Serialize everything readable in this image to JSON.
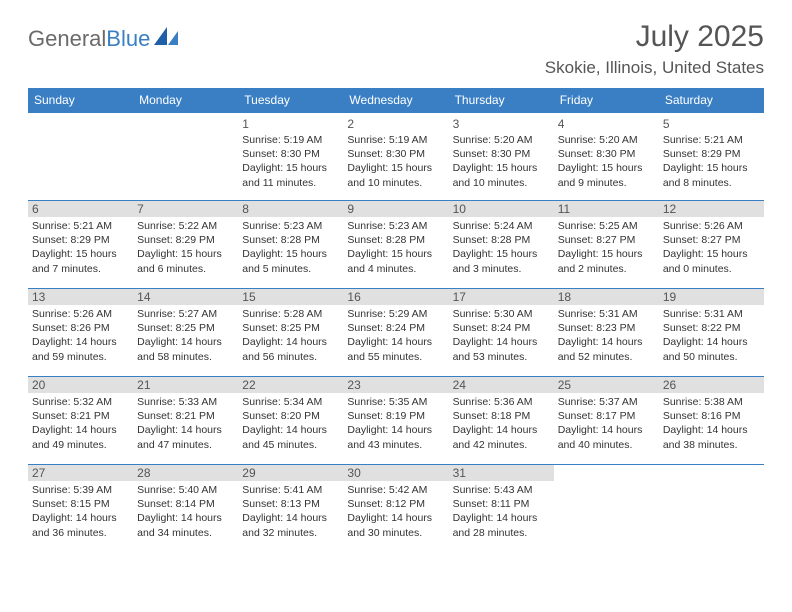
{
  "logo": {
    "part1": "General",
    "part2": "Blue"
  },
  "title": "July 2025",
  "location": "Skokie, Illinois, United States",
  "day_headers": [
    "Sunday",
    "Monday",
    "Tuesday",
    "Wednesday",
    "Thursday",
    "Friday",
    "Saturday"
  ],
  "colors": {
    "header_bg": "#3a7fc4",
    "header_text": "#ffffff",
    "border": "#3a7fc4",
    "logo_grey": "#6a6a6a",
    "logo_blue": "#3a7fc4",
    "shade_bg": "#e0e0e0"
  },
  "weeks": [
    [
      {
        "empty": true
      },
      {
        "empty": true
      },
      {
        "day": "1",
        "shaded": false,
        "sunrise": "Sunrise: 5:19 AM",
        "sunset": "Sunset: 8:30 PM",
        "daylight1": "Daylight: 15 hours",
        "daylight2": "and 11 minutes."
      },
      {
        "day": "2",
        "shaded": false,
        "sunrise": "Sunrise: 5:19 AM",
        "sunset": "Sunset: 8:30 PM",
        "daylight1": "Daylight: 15 hours",
        "daylight2": "and 10 minutes."
      },
      {
        "day": "3",
        "shaded": false,
        "sunrise": "Sunrise: 5:20 AM",
        "sunset": "Sunset: 8:30 PM",
        "daylight1": "Daylight: 15 hours",
        "daylight2": "and 10 minutes."
      },
      {
        "day": "4",
        "shaded": false,
        "sunrise": "Sunrise: 5:20 AM",
        "sunset": "Sunset: 8:30 PM",
        "daylight1": "Daylight: 15 hours",
        "daylight2": "and 9 minutes."
      },
      {
        "day": "5",
        "shaded": false,
        "sunrise": "Sunrise: 5:21 AM",
        "sunset": "Sunset: 8:29 PM",
        "daylight1": "Daylight: 15 hours",
        "daylight2": "and 8 minutes."
      }
    ],
    [
      {
        "day": "6",
        "shaded": true,
        "sunrise": "Sunrise: 5:21 AM",
        "sunset": "Sunset: 8:29 PM",
        "daylight1": "Daylight: 15 hours",
        "daylight2": "and 7 minutes."
      },
      {
        "day": "7",
        "shaded": true,
        "sunrise": "Sunrise: 5:22 AM",
        "sunset": "Sunset: 8:29 PM",
        "daylight1": "Daylight: 15 hours",
        "daylight2": "and 6 minutes."
      },
      {
        "day": "8",
        "shaded": true,
        "sunrise": "Sunrise: 5:23 AM",
        "sunset": "Sunset: 8:28 PM",
        "daylight1": "Daylight: 15 hours",
        "daylight2": "and 5 minutes."
      },
      {
        "day": "9",
        "shaded": true,
        "sunrise": "Sunrise: 5:23 AM",
        "sunset": "Sunset: 8:28 PM",
        "daylight1": "Daylight: 15 hours",
        "daylight2": "and 4 minutes."
      },
      {
        "day": "10",
        "shaded": true,
        "sunrise": "Sunrise: 5:24 AM",
        "sunset": "Sunset: 8:28 PM",
        "daylight1": "Daylight: 15 hours",
        "daylight2": "and 3 minutes."
      },
      {
        "day": "11",
        "shaded": true,
        "sunrise": "Sunrise: 5:25 AM",
        "sunset": "Sunset: 8:27 PM",
        "daylight1": "Daylight: 15 hours",
        "daylight2": "and 2 minutes."
      },
      {
        "day": "12",
        "shaded": true,
        "sunrise": "Sunrise: 5:26 AM",
        "sunset": "Sunset: 8:27 PM",
        "daylight1": "Daylight: 15 hours",
        "daylight2": "and 0 minutes."
      }
    ],
    [
      {
        "day": "13",
        "shaded": true,
        "sunrise": "Sunrise: 5:26 AM",
        "sunset": "Sunset: 8:26 PM",
        "daylight1": "Daylight: 14 hours",
        "daylight2": "and 59 minutes."
      },
      {
        "day": "14",
        "shaded": true,
        "sunrise": "Sunrise: 5:27 AM",
        "sunset": "Sunset: 8:25 PM",
        "daylight1": "Daylight: 14 hours",
        "daylight2": "and 58 minutes."
      },
      {
        "day": "15",
        "shaded": true,
        "sunrise": "Sunrise: 5:28 AM",
        "sunset": "Sunset: 8:25 PM",
        "daylight1": "Daylight: 14 hours",
        "daylight2": "and 56 minutes."
      },
      {
        "day": "16",
        "shaded": true,
        "sunrise": "Sunrise: 5:29 AM",
        "sunset": "Sunset: 8:24 PM",
        "daylight1": "Daylight: 14 hours",
        "daylight2": "and 55 minutes."
      },
      {
        "day": "17",
        "shaded": true,
        "sunrise": "Sunrise: 5:30 AM",
        "sunset": "Sunset: 8:24 PM",
        "daylight1": "Daylight: 14 hours",
        "daylight2": "and 53 minutes."
      },
      {
        "day": "18",
        "shaded": true,
        "sunrise": "Sunrise: 5:31 AM",
        "sunset": "Sunset: 8:23 PM",
        "daylight1": "Daylight: 14 hours",
        "daylight2": "and 52 minutes."
      },
      {
        "day": "19",
        "shaded": true,
        "sunrise": "Sunrise: 5:31 AM",
        "sunset": "Sunset: 8:22 PM",
        "daylight1": "Daylight: 14 hours",
        "daylight2": "and 50 minutes."
      }
    ],
    [
      {
        "day": "20",
        "shaded": true,
        "sunrise": "Sunrise: 5:32 AM",
        "sunset": "Sunset: 8:21 PM",
        "daylight1": "Daylight: 14 hours",
        "daylight2": "and 49 minutes."
      },
      {
        "day": "21",
        "shaded": true,
        "sunrise": "Sunrise: 5:33 AM",
        "sunset": "Sunset: 8:21 PM",
        "daylight1": "Daylight: 14 hours",
        "daylight2": "and 47 minutes."
      },
      {
        "day": "22",
        "shaded": true,
        "sunrise": "Sunrise: 5:34 AM",
        "sunset": "Sunset: 8:20 PM",
        "daylight1": "Daylight: 14 hours",
        "daylight2": "and 45 minutes."
      },
      {
        "day": "23",
        "shaded": true,
        "sunrise": "Sunrise: 5:35 AM",
        "sunset": "Sunset: 8:19 PM",
        "daylight1": "Daylight: 14 hours",
        "daylight2": "and 43 minutes."
      },
      {
        "day": "24",
        "shaded": true,
        "sunrise": "Sunrise: 5:36 AM",
        "sunset": "Sunset: 8:18 PM",
        "daylight1": "Daylight: 14 hours",
        "daylight2": "and 42 minutes."
      },
      {
        "day": "25",
        "shaded": true,
        "sunrise": "Sunrise: 5:37 AM",
        "sunset": "Sunset: 8:17 PM",
        "daylight1": "Daylight: 14 hours",
        "daylight2": "and 40 minutes."
      },
      {
        "day": "26",
        "shaded": true,
        "sunrise": "Sunrise: 5:38 AM",
        "sunset": "Sunset: 8:16 PM",
        "daylight1": "Daylight: 14 hours",
        "daylight2": "and 38 minutes."
      }
    ],
    [
      {
        "day": "27",
        "shaded": true,
        "sunrise": "Sunrise: 5:39 AM",
        "sunset": "Sunset: 8:15 PM",
        "daylight1": "Daylight: 14 hours",
        "daylight2": "and 36 minutes."
      },
      {
        "day": "28",
        "shaded": true,
        "sunrise": "Sunrise: 5:40 AM",
        "sunset": "Sunset: 8:14 PM",
        "daylight1": "Daylight: 14 hours",
        "daylight2": "and 34 minutes."
      },
      {
        "day": "29",
        "shaded": true,
        "sunrise": "Sunrise: 5:41 AM",
        "sunset": "Sunset: 8:13 PM",
        "daylight1": "Daylight: 14 hours",
        "daylight2": "and 32 minutes."
      },
      {
        "day": "30",
        "shaded": true,
        "sunrise": "Sunrise: 5:42 AM",
        "sunset": "Sunset: 8:12 PM",
        "daylight1": "Daylight: 14 hours",
        "daylight2": "and 30 minutes."
      },
      {
        "day": "31",
        "shaded": true,
        "sunrise": "Sunrise: 5:43 AM",
        "sunset": "Sunset: 8:11 PM",
        "daylight1": "Daylight: 14 hours",
        "daylight2": "and 28 minutes."
      },
      {
        "empty": true
      },
      {
        "empty": true
      }
    ]
  ]
}
